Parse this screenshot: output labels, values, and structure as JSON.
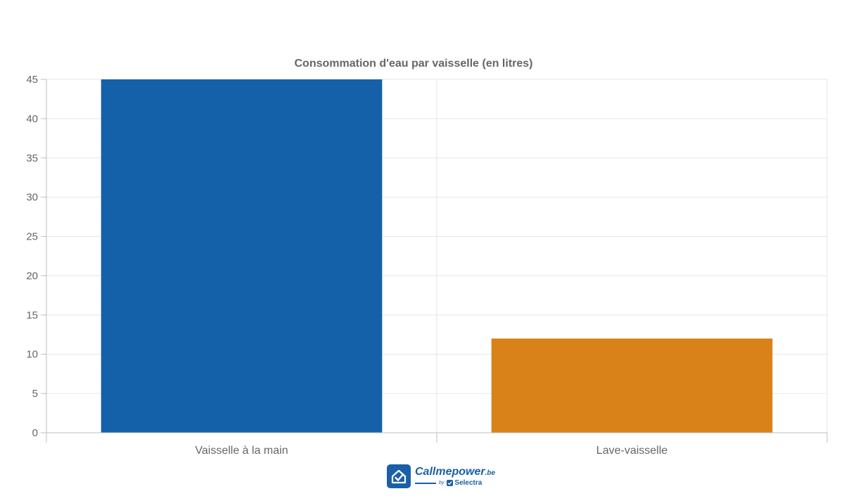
{
  "chart_data": {
    "type": "bar",
    "title": "Consommation d'eau par vaisselle (en litres)",
    "categories": [
      "Vaisselle à la main",
      "Lave-vaisselle"
    ],
    "values": [
      45,
      12
    ],
    "bar_colors": [
      "#1461a9",
      "#d98219"
    ],
    "ylim": [
      0,
      45
    ],
    "yticks": [
      0,
      5,
      10,
      15,
      20,
      25,
      30,
      35,
      40,
      45
    ],
    "xlabel": "",
    "ylabel": "",
    "grid": true,
    "legend": "none"
  },
  "branding": {
    "logo_name": "Callmepower",
    "logo_tld": ".be",
    "logo_by": "by",
    "logo_partner": "Selectra",
    "logo_color": "#1a5fa8",
    "logo_icon": "house-check-icon"
  }
}
